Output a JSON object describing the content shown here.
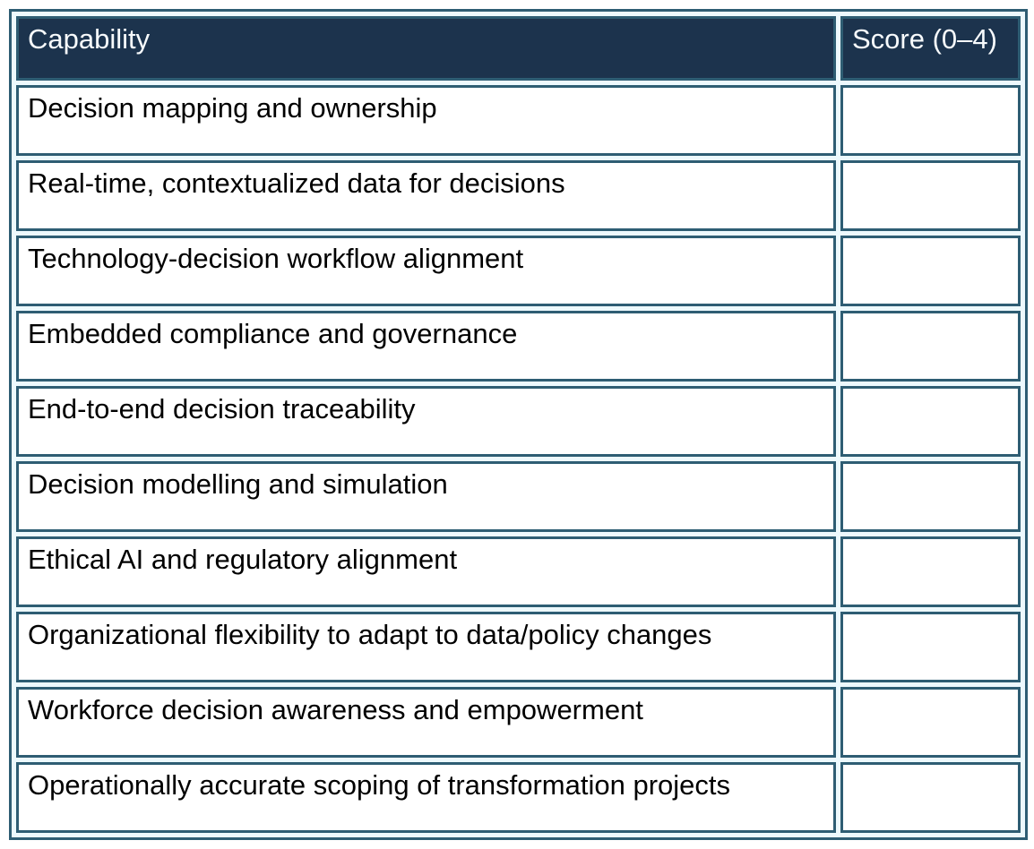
{
  "table": {
    "columns": {
      "capability_header": "Capability",
      "score_header": "Score (0–4)"
    },
    "rows": [
      {
        "capability": "Decision mapping and ownership",
        "score": ""
      },
      {
        "capability": "Real-time, contextualized data for decisions",
        "score": ""
      },
      {
        "capability": "Technology-decision workflow alignment",
        "score": ""
      },
      {
        "capability": "Embedded compliance and governance",
        "score": ""
      },
      {
        "capability": "End-to-end decision traceability",
        "score": ""
      },
      {
        "capability": "Decision modelling and simulation",
        "score": ""
      },
      {
        "capability": "Ethical AI and regulatory alignment",
        "score": ""
      },
      {
        "capability": "Organizational flexibility to adapt to data/policy changes",
        "score": ""
      },
      {
        "capability": "Workforce decision awareness and empowerment",
        "score": ""
      },
      {
        "capability": "Operationally accurate scoping of transformation projects",
        "score": ""
      }
    ],
    "colors": {
      "header_background": "#1c334d",
      "header_text": "#f7fafc",
      "cell_border": "#2e5d73",
      "table_gap_background": "#edf9fd",
      "cell_background": "#ffffff",
      "body_text": "#000000"
    }
  }
}
